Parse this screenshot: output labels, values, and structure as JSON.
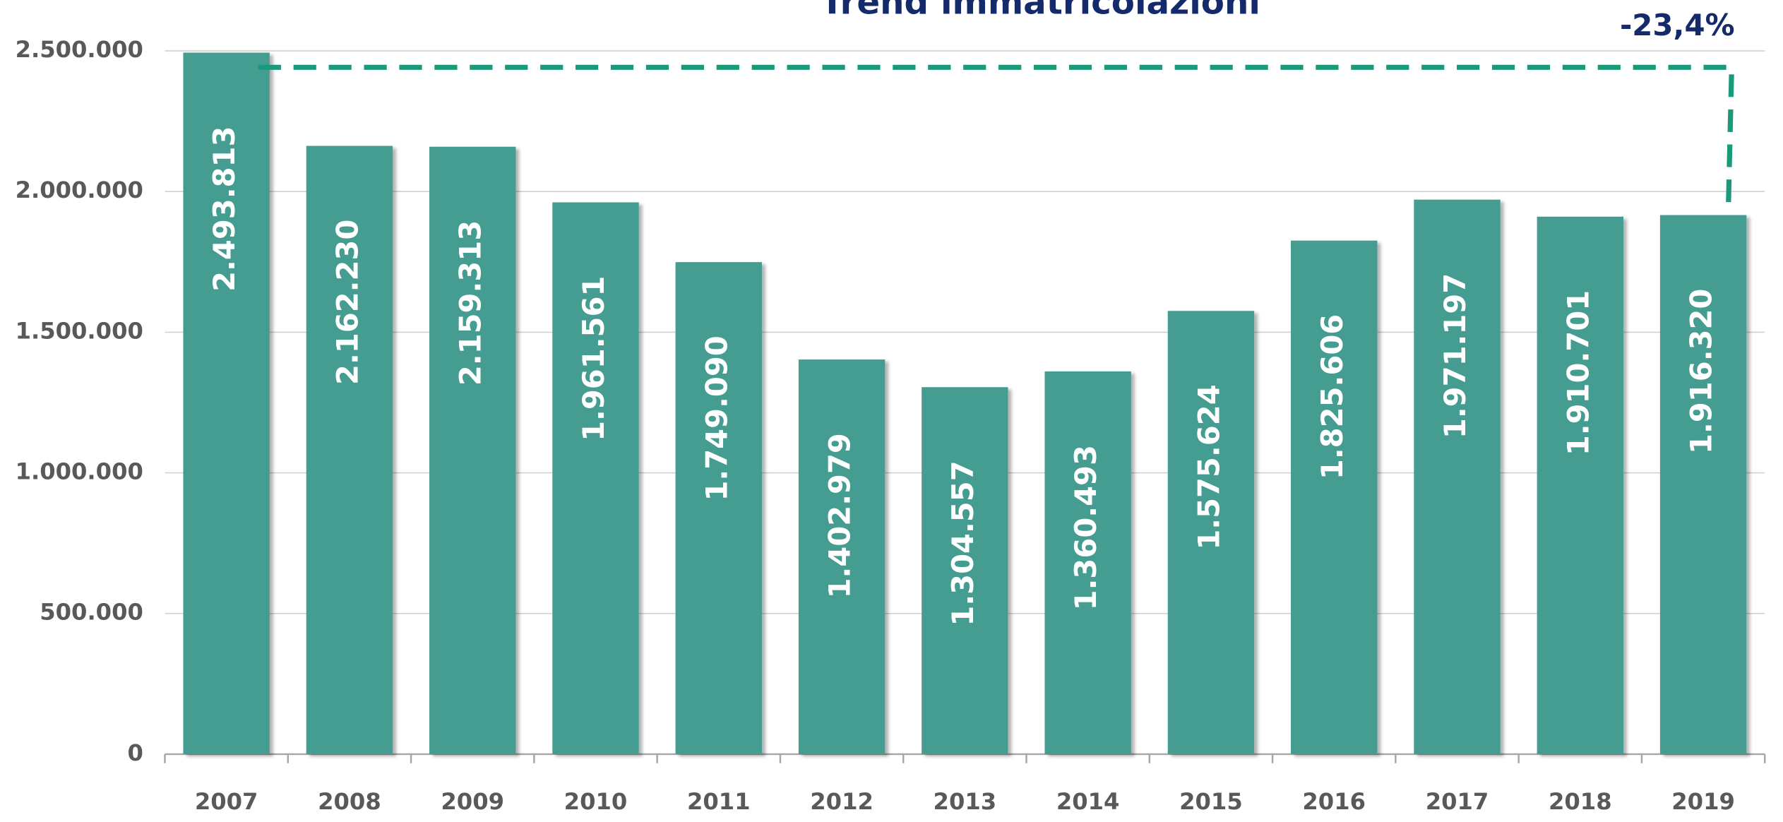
{
  "chart_data": {
    "type": "bar",
    "title": "Trend immatricolazioni",
    "annotation": "-23,4%",
    "categories": [
      "2007",
      "2008",
      "2009",
      "2010",
      "2011",
      "2012",
      "2013",
      "2014",
      "2015",
      "2016",
      "2017",
      "2018",
      "2019"
    ],
    "values": [
      2493813,
      2162230,
      2159313,
      1961561,
      1749090,
      1402979,
      1304557,
      1360493,
      1575624,
      1825606,
      1971197,
      1910701,
      1916320
    ],
    "value_labels": [
      "2.493.813",
      "2.162.230",
      "2.159.313",
      "1.961.561",
      "1.749.090",
      "1.402.979",
      "1.304.557",
      "1.360.493",
      "1.575.624",
      "1.825.606",
      "1.971.197",
      "1.910.701",
      "1.916.320"
    ],
    "color": "#459d91",
    "ylim": [
      0,
      2500000
    ],
    "yticks": [
      0,
      {
        "value": 500000,
        "label": "500.000"
      },
      {
        "value": 1000000,
        "label": "1.000.000"
      },
      {
        "value": 1500000,
        "label": "1.500.000"
      },
      {
        "value": 2000000,
        "label": "2.000.000"
      },
      {
        "value": 2500000,
        "label": "2.500.000"
      }
    ],
    "grid": true
  }
}
